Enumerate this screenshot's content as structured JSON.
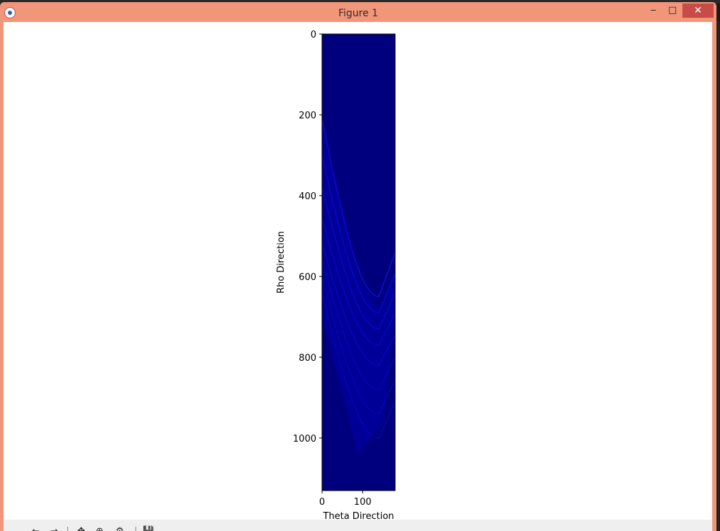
{
  "window": {
    "title": "Figure 1",
    "minimize": "‒",
    "maximize": "□",
    "close": "✕"
  },
  "toolbar": {
    "home": "⌂",
    "back": "←",
    "forward": "→",
    "pan": "✥",
    "zoom": "⊕",
    "configure": "⚙",
    "save": "💾"
  },
  "colors": {
    "titlebar": "#f2967a",
    "close": "#c74b46",
    "colormap": "jet",
    "background": "#00007f"
  },
  "chart_data": {
    "type": "heatmap",
    "title": "",
    "xlabel": "Theta Direction",
    "ylabel": "Rho Direction",
    "xlim": [
      0,
      180
    ],
    "ylim": [
      1130,
      0
    ],
    "xticks": [
      "0",
      "100"
    ],
    "yticks": [
      "0",
      "200",
      "400",
      "600",
      "800",
      "1000"
    ],
    "colormap": "jet",
    "description_values": "Hough accumulator; low counts (dark blue) except curved bands of higher counts"
  }
}
